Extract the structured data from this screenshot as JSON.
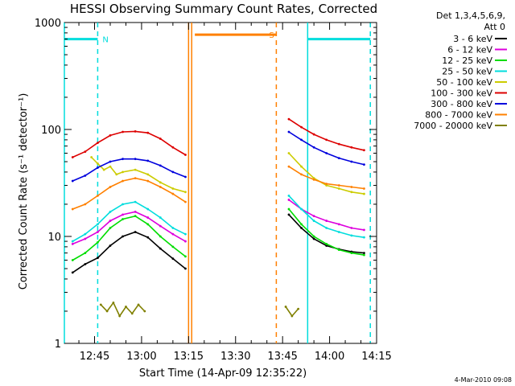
{
  "chart_data": {
    "type": "line",
    "title": "HESSI Observing Summary Count Rates, Corrected",
    "xlabel": "Start Time (14-Apr-09 12:35:22)",
    "ylabel": "Corrected Count Rate (s⁻¹ detector⁻¹)",
    "y_scale": "log",
    "ylim": [
      1,
      1000
    ],
    "xlim": [
      "12:35:22",
      "14:15:00"
    ],
    "x_ticks": [
      "12:45",
      "13:00",
      "13:15",
      "13:30",
      "13:45",
      "14:00",
      "14:15"
    ],
    "y_ticks": [
      "1",
      "10",
      "100",
      "1000"
    ],
    "legend_position": "top-right",
    "legend_header": [
      "Det 1,3,4,5,6,9,",
      "Att 0"
    ],
    "footer_date": "4-Mar-2010 09:08",
    "series": [
      {
        "name": "3 - 6 keV",
        "color": "#000000",
        "segments": [
          {
            "x": [
              "12:38",
              "12:42",
              "12:46",
              "12:50",
              "12:54",
              "12:58",
              "13:02",
              "13:06",
              "13:10",
              "13:14"
            ],
            "y": [
              4.6,
              5.5,
              6.3,
              8.2,
              10,
              11,
              9.8,
              7.7,
              6.2,
              5
            ]
          },
          {
            "x": [
              "13:47",
              "13:51",
              "13:55",
              "13:59",
              "14:03",
              "14:07",
              "14:11"
            ],
            "y": [
              16,
              12,
              9.5,
              8.2,
              7.6,
              7.2,
              7
            ]
          }
        ]
      },
      {
        "name": "6 - 12 keV",
        "color": "#dd00dd",
        "segments": [
          {
            "x": [
              "12:38",
              "12:42",
              "12:46",
              "12:50",
              "12:54",
              "12:58",
              "13:02",
              "13:06",
              "13:10",
              "13:14"
            ],
            "y": [
              8.5,
              9.5,
              11,
              14,
              16,
              17,
              15,
              12.5,
              10.5,
              9
            ]
          },
          {
            "x": [
              "13:47",
              "13:51",
              "13:55",
              "13:59",
              "14:03",
              "14:07",
              "14:11"
            ],
            "y": [
              22,
              18,
              15.5,
              14,
              13,
              12,
              11.5
            ]
          }
        ]
      },
      {
        "name": "12 - 25 keV",
        "color": "#00dd00",
        "segments": [
          {
            "x": [
              "12:38",
              "12:42",
              "12:46",
              "12:50",
              "12:54",
              "12:58",
              "13:02",
              "13:06",
              "13:10",
              "13:14"
            ],
            "y": [
              6,
              7,
              8.8,
              12,
              14.5,
              15.5,
              13,
              10,
              8,
              6.5
            ]
          },
          {
            "x": [
              "13:47",
              "13:51",
              "13:55",
              "13:59",
              "14:03",
              "14:07",
              "14:11"
            ],
            "y": [
              18,
              13,
              10,
              8.5,
              7.5,
              7,
              6.7
            ]
          }
        ]
      },
      {
        "name": "25 - 50 keV",
        "color": "#00dddd",
        "segments": [
          {
            "x": [
              "12:38",
              "12:42",
              "12:46",
              "12:50",
              "12:54",
              "12:58",
              "13:02",
              "13:06",
              "13:10",
              "13:14"
            ],
            "y": [
              9,
              10.5,
              13,
              17,
              20,
              21,
              18,
              15,
              12,
              10.5
            ]
          },
          {
            "x": [
              "13:47",
              "13:51",
              "13:55",
              "13:59",
              "14:03",
              "14:07",
              "14:11"
            ],
            "y": [
              24,
              18,
              14,
              12,
              11,
              10.2,
              9.8
            ]
          }
        ]
      },
      {
        "name": "50 - 100 keV",
        "color": "#cccc00",
        "segments": [
          {
            "x": [
              "12:44",
              "12:46",
              "12:48",
              "12:50",
              "12:52",
              "12:54",
              "12:58",
              "13:02",
              "13:06",
              "13:10",
              "13:14"
            ],
            "y": [
              55,
              48,
              42,
              45,
              38,
              40,
              42,
              38,
              32,
              28,
              26
            ]
          },
          {
            "x": [
              "13:47",
              "13:51",
              "13:55",
              "13:59",
              "14:03",
              "14:07",
              "14:11"
            ],
            "y": [
              60,
              45,
              35,
              30,
              28,
              26,
              25
            ]
          }
        ]
      },
      {
        "name": "100 - 300 keV",
        "color": "#dd0000",
        "segments": [
          {
            "x": [
              "12:38",
              "12:42",
              "12:46",
              "12:50",
              "12:54",
              "12:58",
              "13:02",
              "13:06",
              "13:10",
              "13:14"
            ],
            "y": [
              55,
              62,
              75,
              88,
              95,
              96,
              93,
              82,
              68,
              58
            ]
          },
          {
            "x": [
              "13:47",
              "13:51",
              "13:55",
              "13:59",
              "14:03",
              "14:07",
              "14:11"
            ],
            "y": [
              125,
              105,
              90,
              80,
              73,
              68,
              64
            ]
          }
        ]
      },
      {
        "name": "300 - 800 keV",
        "color": "#0000dd",
        "segments": [
          {
            "x": [
              "12:38",
              "12:42",
              "12:46",
              "12:50",
              "12:54",
              "12:58",
              "13:02",
              "13:06",
              "13:10",
              "13:14"
            ],
            "y": [
              33,
              37,
              44,
              50,
              53,
              53,
              51,
              46,
              40,
              36
            ]
          },
          {
            "x": [
              "13:47",
              "13:51",
              "13:55",
              "13:59",
              "14:03",
              "14:07",
              "14:11"
            ],
            "y": [
              95,
              80,
              68,
              60,
              54,
              50,
              47
            ]
          }
        ]
      },
      {
        "name": "800 - 7000 keV",
        "color": "#ff8000",
        "segments": [
          {
            "x": [
              "12:38",
              "12:42",
              "12:46",
              "12:50",
              "12:54",
              "12:58",
              "13:02",
              "13:06",
              "13:10",
              "13:14"
            ],
            "y": [
              18,
              20,
              24,
              29,
              33,
              35,
              33,
              29,
              25,
              21
            ]
          },
          {
            "x": [
              "13:47",
              "13:51",
              "13:55",
              "13:59",
              "14:03",
              "14:07",
              "14:11"
            ],
            "y": [
              45,
              38,
              34,
              31,
              30,
              29,
              28
            ]
          }
        ]
      },
      {
        "name": "7000 - 20000 keV",
        "color": "#808000",
        "segments": [
          {
            "x": [
              "12:47",
              "12:49",
              "12:51",
              "12:53",
              "12:55",
              "12:57",
              "12:59",
              "13:01"
            ],
            "y": [
              2.3,
              2,
              2.4,
              1.8,
              2.2,
              1.9,
              2.3,
              2
            ]
          },
          {
            "x": [
              "13:46",
              "13:48",
              "13:50"
            ],
            "y": [
              2.2,
              1.8,
              2.1
            ]
          }
        ]
      }
    ],
    "annotations": [
      {
        "label": "N",
        "color": "#00dddd",
        "from": "12:35:22",
        "to": "12:46",
        "level": 700
      },
      {
        "label": "S",
        "color": "#ff8000",
        "from": "13:17",
        "to": "13:43",
        "level": 770
      },
      {
        "label": "",
        "color": "#00dddd",
        "from": "13:53",
        "to": "14:13",
        "level": 700
      }
    ],
    "vertical_markers": [
      {
        "x": "12:35:22",
        "color": "#00dddd",
        "style": "solid"
      },
      {
        "x": "12:46",
        "color": "#00dddd",
        "style": "dashed"
      },
      {
        "x": "13:15",
        "color": "#ff8000",
        "style": "solid"
      },
      {
        "x": "13:16",
        "color": "#ff8000",
        "style": "solid"
      },
      {
        "x": "13:43",
        "color": "#ff8000",
        "style": "dashed"
      },
      {
        "x": "13:53",
        "color": "#00dddd",
        "style": "solid"
      },
      {
        "x": "14:13",
        "color": "#00dddd",
        "style": "dashed"
      }
    ]
  }
}
